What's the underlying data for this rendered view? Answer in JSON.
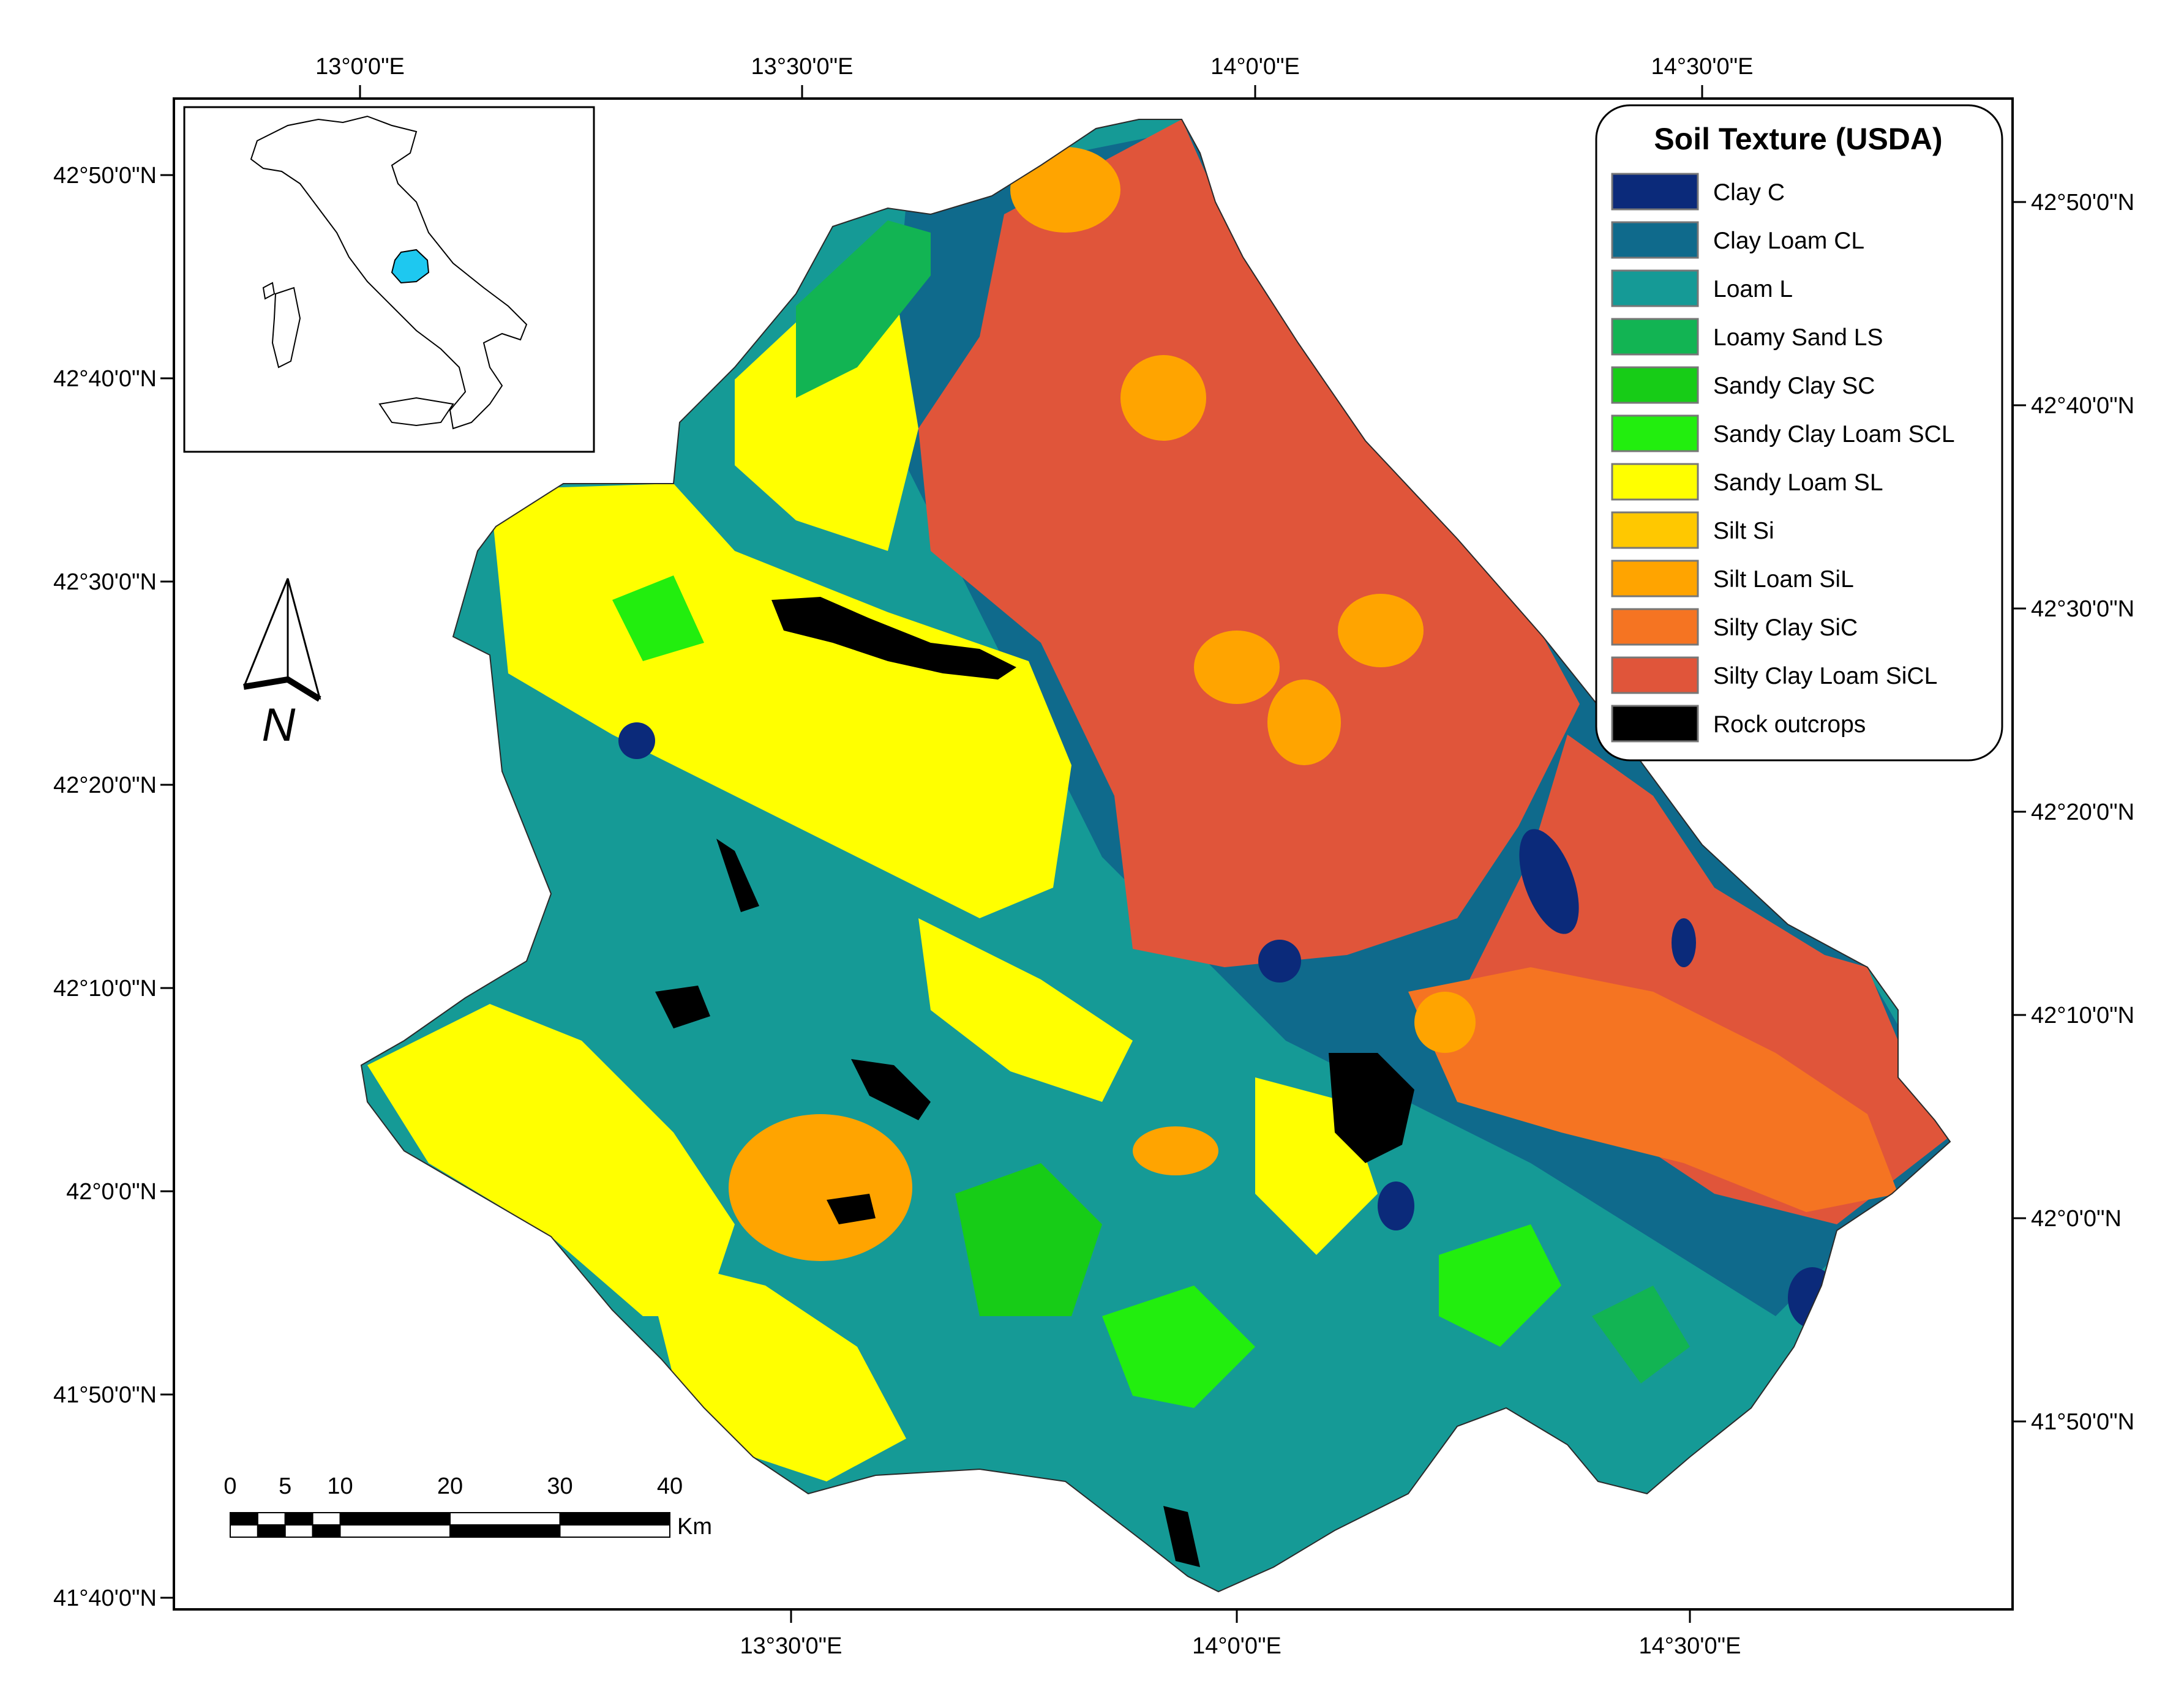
{
  "map": {
    "top_ticks": [
      "13°0'0\"E",
      "13°30'0\"E",
      "14°0'0\"E",
      "14°30'0\"E"
    ],
    "bottom_ticks": [
      "13°30'0\"E",
      "14°0'0\"E",
      "14°30'0\"E"
    ],
    "left_ticks": [
      "42°50'0\"N",
      "42°40'0\"N",
      "42°30'0\"N",
      "42°20'0\"N",
      "42°10'0\"N",
      "42°0'0\"N",
      "41°50'0\"N",
      "41°40'0\"N"
    ],
    "right_ticks": [
      "42°50'0\"N",
      "42°40'0\"N",
      "42°30'0\"N",
      "42°20'0\"N",
      "42°10'0\"N",
      "42°0'0\"N",
      "41°50'0\"N"
    ]
  },
  "legend": {
    "title": "Soil Texture (USDA)",
    "items": [
      {
        "label": "Clay C",
        "color": "#0b2a7a"
      },
      {
        "label": "Clay Loam CL",
        "color": "#0f6a8c"
      },
      {
        "label": "Loam L",
        "color": "#159a96"
      },
      {
        "label": "Loamy Sand LS",
        "color": "#12b453"
      },
      {
        "label": "Sandy Clay SC",
        "color": "#17cc17"
      },
      {
        "label": "Sandy Clay Loam SCL",
        "color": "#22ee0e"
      },
      {
        "label": "Sandy Loam SL",
        "color": "#ffff00"
      },
      {
        "label": "Silt Si",
        "color": "#ffc800"
      },
      {
        "label": "Silt Loam SiL",
        "color": "#ffa400"
      },
      {
        "label": "Silty Clay SiC",
        "color": "#f57422"
      },
      {
        "label": "Silty Clay Loam SiCL",
        "color": "#e0553a"
      },
      {
        "label": "Rock outcrops",
        "color": "#000000"
      }
    ]
  },
  "north_arrow": {
    "label": "N",
    "icon": "north-arrow-icon"
  },
  "scale_bar": {
    "numbers": [
      "0",
      "5",
      "10",
      "20",
      "30",
      "40"
    ],
    "unit": "Km"
  },
  "inset": {
    "icon": "italy-locator-icon",
    "highlight_color": "#1ec8f0"
  }
}
